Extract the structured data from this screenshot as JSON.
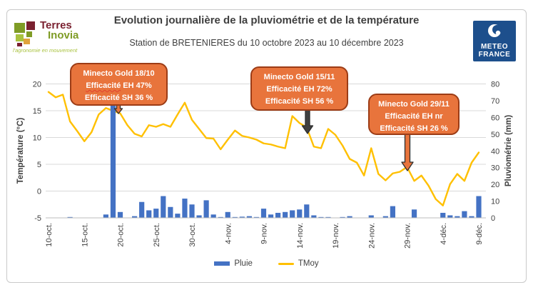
{
  "header": {
    "title": "Evolution journalière de la pluviométrie et de la température",
    "subtitle": "Station de BRETENIERES du 10 octobre 2023 au 10 décembre 2023"
  },
  "logos": {
    "terres_inovia": {
      "line1": "Terres",
      "line2": "Inovia",
      "tagline": "l'agronomie en mouvement"
    },
    "meteo_france": {
      "line1": "METEO",
      "line2": "FRANCE"
    }
  },
  "annotations": [
    {
      "lines": [
        "Minecto Gold 18/10",
        "Efficacité EH 47%",
        "Efficacité SH 36 %"
      ],
      "arrow_color": "#E8743C"
    },
    {
      "lines": [
        "Minecto Gold 15/11",
        "Efficacité EH 72%",
        "Efficacité SH 56 %"
      ],
      "arrow_color": "#404040"
    },
    {
      "lines": [
        "Minecto Gold 29/11",
        "Efficacité EH nr",
        "Efficacité SH 26 %"
      ],
      "arrow_color": "#E8743C"
    }
  ],
  "colors": {
    "bar": "#4472C4",
    "line": "#FFC000",
    "callout_fill": "#E8743C",
    "callout_border": "#9C3C16",
    "gridline": "#D9D9D9",
    "axis_line": "#BDBDBD",
    "axis_text": "#404040",
    "title_text": "#3F3F3F",
    "meteo_blue": "#1D4F8C",
    "terres_red": "#7A2130",
    "terres_green": "#7F9C26",
    "terres_lightgreen": "#A9C23F",
    "terres_orange": "#E0A33C"
  },
  "chart_data": {
    "type": "bar",
    "subtype": "bar+line combo, dual axis",
    "x_ticks": [
      "10-oct.",
      "15-oct.",
      "20-oct.",
      "25-oct.",
      "30-oct.",
      "4-nov.",
      "9-nov.",
      "14-nov.",
      "19-nov.",
      "24-nov.",
      "29-nov.",
      "4-déc.",
      "9-déc."
    ],
    "x_tick_step_days": 5,
    "dates": [
      "10-oct",
      "11-oct",
      "12-oct",
      "13-oct",
      "14-oct",
      "15-oct",
      "16-oct",
      "17-oct",
      "18-oct",
      "19-oct",
      "20-oct",
      "21-oct",
      "22-oct",
      "23-oct",
      "24-oct",
      "25-oct",
      "26-oct",
      "27-oct",
      "28-oct",
      "29-oct",
      "30-oct",
      "31-oct",
      "1-nov",
      "2-nov",
      "3-nov",
      "4-nov",
      "5-nov",
      "6-nov",
      "7-nov",
      "8-nov",
      "9-nov",
      "10-nov",
      "11-nov",
      "12-nov",
      "13-nov",
      "14-nov",
      "15-nov",
      "16-nov",
      "17-nov",
      "18-nov",
      "19-nov",
      "20-nov",
      "21-nov",
      "22-nov",
      "23-nov",
      "24-nov",
      "25-nov",
      "26-nov",
      "27-nov",
      "28-nov",
      "29-nov",
      "30-nov",
      "1-déc",
      "2-déc",
      "3-déc",
      "4-déc",
      "5-déc",
      "6-déc",
      "7-déc",
      "8-déc",
      "9-déc"
    ],
    "series": [
      {
        "name": "Pluie",
        "type": "bar",
        "axis": "right",
        "color": "#4472C4",
        "values": [
          0,
          0,
          0,
          0.5,
          0,
          0,
          0,
          0,
          2,
          67,
          3.5,
          0,
          1,
          9.5,
          4.5,
          5.5,
          13,
          6.5,
          2.5,
          11.5,
          8,
          1.5,
          10.5,
          2,
          0.5,
          3.5,
          0.5,
          0.7,
          1,
          0.5,
          5.5,
          2,
          3,
          3.5,
          4.5,
          5,
          8,
          1.5,
          0.5,
          0.5,
          0,
          0.5,
          1,
          0,
          0,
          1.5,
          0,
          1,
          7,
          0,
          0,
          5,
          0,
          0,
          0,
          3,
          1.5,
          1,
          4,
          1,
          13
        ]
      },
      {
        "name": "TMoy",
        "type": "line",
        "axis": "left",
        "color": "#FFC000",
        "values": [
          18.5,
          17.5,
          18.0,
          13.0,
          11.2,
          9.3,
          11.0,
          14.3,
          15.5,
          15.0,
          14.5,
          12.3,
          10.7,
          10.2,
          12.3,
          12.0,
          12.5,
          12.0,
          14.3,
          16.5,
          13.3,
          11.6,
          9.9,
          9.8,
          7.8,
          9.6,
          11.3,
          10.3,
          10.0,
          9.6,
          8.9,
          8.7,
          8.3,
          8.0,
          14.0,
          12.7,
          11.9,
          8.3,
          8.0,
          11.6,
          10.5,
          8.5,
          6.0,
          5.3,
          2.9,
          8.0,
          3.2,
          2.0,
          3.3,
          3.6,
          4.5,
          1.9,
          2.9,
          1.0,
          -1.5,
          -2.7,
          1.3,
          3.2,
          1.9,
          5.3,
          7.2
        ]
      }
    ],
    "left_axis": {
      "label": "Température (°C)",
      "min": -5,
      "max": 20,
      "ticks": [
        20,
        15,
        10,
        5,
        0,
        -5
      ]
    },
    "right_axis": {
      "label": "Pluviométrie (mm)",
      "min": 0,
      "max": 80,
      "ticks": [
        80,
        70,
        60,
        50,
        40,
        30,
        20,
        10,
        0
      ]
    },
    "grid": "horizontal",
    "legend": {
      "position": "bottom",
      "entries": [
        "Pluie",
        "TMoy"
      ]
    }
  }
}
